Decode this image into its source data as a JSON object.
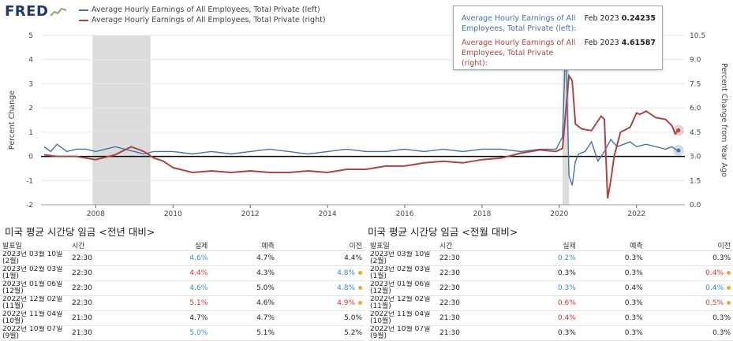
{
  "header": {
    "logo": "FRED",
    "legend": [
      {
        "label": "Average Hourly Earnings of All Employees, Total Private (left)",
        "color": "#4572a7"
      },
      {
        "label": "Average Hourly Earnings of All Employees, Total Private (right)",
        "color": "#aa4643"
      }
    ]
  },
  "tooltip": {
    "rows": [
      {
        "name": "Average Hourly Earnings of All Employees, Total Private (left):",
        "date": "Feb 2023",
        "value": "0.24235",
        "color": "#4572a7"
      },
      {
        "name": "Average Hourly Earnings of All Employees, Total Private (right):",
        "date": "Feb 2023",
        "value": "4.61587",
        "color": "#aa4643"
      }
    ]
  },
  "chart_data": {
    "type": "line",
    "y_left_label": "Percent Change",
    "y_right_label": "Percent Change from Year Ago",
    "y_left_ticks": [
      "5",
      "4",
      "3",
      "2",
      "1",
      "0",
      "-1",
      "-2"
    ],
    "y_right_ticks": [
      "10.5",
      "9.0",
      "7.5",
      "6.0",
      "4.5",
      "3.0",
      "1.5",
      "0.0"
    ],
    "x_ticks": [
      "2008",
      "2010",
      "2012",
      "2014",
      "2016",
      "2018",
      "2020",
      "2022"
    ],
    "ylim_left": [
      -2,
      5
    ],
    "ylim_right": [
      0,
      10.5
    ],
    "x_range": [
      2006.583,
      2023.25
    ],
    "recessions": [
      [
        2007.917,
        2009.417
      ],
      [
        2020.083,
        2020.25
      ]
    ],
    "series": [
      {
        "name": "Average Hourly Earnings of All Employees, Total Private (left)",
        "color": "#4572a7",
        "axis": "left",
        "x": [
          2006.667,
          2006.833,
          2007.0,
          2007.25,
          2007.5,
          2007.75,
          2008.0,
          2008.25,
          2008.5,
          2008.75,
          2009.0,
          2009.25,
          2009.5,
          2009.75,
          2010.0,
          2010.5,
          2011.0,
          2011.5,
          2012.0,
          2012.5,
          2013.0,
          2013.5,
          2014.0,
          2014.5,
          2015.0,
          2015.5,
          2016.0,
          2016.5,
          2017.0,
          2017.5,
          2018.0,
          2018.5,
          2019.0,
          2019.5,
          2019.917,
          2020.083,
          2020.167,
          2020.25,
          2020.333,
          2020.417,
          2020.5,
          2020.667,
          2020.833,
          2021.0,
          2021.167,
          2021.333,
          2021.5,
          2021.667,
          2021.833,
          2022.0,
          2022.25,
          2022.5,
          2022.75,
          2022.917,
          2023.0,
          2023.083
        ],
        "values": [
          0.4,
          0.2,
          0.5,
          0.2,
          0.3,
          0.3,
          0.2,
          0.3,
          0.4,
          0.3,
          0.2,
          0.1,
          0.2,
          0.2,
          0.2,
          0.1,
          0.2,
          0.1,
          0.2,
          0.3,
          0.2,
          0.1,
          0.2,
          0.3,
          0.2,
          0.2,
          0.3,
          0.2,
          0.3,
          0.2,
          0.3,
          0.3,
          0.2,
          0.3,
          0.3,
          0.8,
          4.8,
          -0.8,
          -1.2,
          -0.2,
          0.1,
          0.2,
          0.6,
          -0.2,
          0.2,
          0.7,
          0.4,
          0.5,
          0.6,
          0.4,
          0.5,
          0.4,
          0.3,
          0.4,
          0.3,
          0.24235
        ]
      },
      {
        "name": "Average Hourly Earnings of All Employees, Total Private (right)",
        "color": "#aa4643",
        "axis": "right",
        "x": [
          2006.667,
          2007.0,
          2007.5,
          2008.0,
          2008.5,
          2008.917,
          2009.25,
          2009.5,
          2009.75,
          2010.0,
          2010.5,
          2011.0,
          2011.5,
          2012.0,
          2012.5,
          2013.0,
          2013.5,
          2014.0,
          2014.5,
          2015.0,
          2015.5,
          2016.0,
          2016.5,
          2017.0,
          2017.5,
          2018.0,
          2018.5,
          2019.0,
          2019.5,
          2019.917,
          2020.083,
          2020.25,
          2020.333,
          2020.417,
          2020.583,
          2020.833,
          2021.083,
          2021.167,
          2021.25,
          2021.333,
          2021.417,
          2021.583,
          2021.833,
          2022.0,
          2022.083,
          2022.25,
          2022.5,
          2022.75,
          2022.917,
          2023.0,
          2023.083
        ],
        "values": [
          3.1,
          3.0,
          3.0,
          2.8,
          3.1,
          3.6,
          3.3,
          2.9,
          2.7,
          2.3,
          2.0,
          2.1,
          2.0,
          2.1,
          2.0,
          2.0,
          2.1,
          2.0,
          2.2,
          2.2,
          2.4,
          2.4,
          2.6,
          2.7,
          2.6,
          2.8,
          2.9,
          3.2,
          3.4,
          3.3,
          3.5,
          8.0,
          7.7,
          5.0,
          4.7,
          4.6,
          5.5,
          5.3,
          0.4,
          1.5,
          3.0,
          4.5,
          4.8,
          5.7,
          5.6,
          5.8,
          5.4,
          5.3,
          4.9,
          4.4,
          4.61587
        ]
      }
    ]
  },
  "tables": [
    {
      "title": "미국 평균 시간당 임금 <전년 대비>",
      "headers": [
        "발표일",
        "시간",
        "실제",
        "예측",
        "이전"
      ],
      "rows": [
        {
          "date": "2023년 03월 10일 (2월)",
          "time": "22:30",
          "actual": "4.6%",
          "forecast": "4.7%",
          "previous": "4.4%",
          "actual_color": "blue",
          "prev_color": "",
          "dot": false
        },
        {
          "date": "2023년 02월 03일 (1월)",
          "time": "22:30",
          "actual": "4.4%",
          "forecast": "4.3%",
          "previous": "4.8%",
          "actual_color": "red",
          "prev_color": "blue",
          "dot": true
        },
        {
          "date": "2023년 01월 06일 (12월)",
          "time": "22:30",
          "actual": "4.6%",
          "forecast": "5.0%",
          "previous": "4.8%",
          "actual_color": "blue",
          "prev_color": "blue",
          "dot": true
        },
        {
          "date": "2022년 12월 02일 (11월)",
          "time": "22:30",
          "actual": "5.1%",
          "forecast": "4.6%",
          "previous": "4.9%",
          "actual_color": "red",
          "prev_color": "red",
          "dot": true
        },
        {
          "date": "2022년 11월 04일 (10월)",
          "time": "21:30",
          "actual": "4.7%",
          "forecast": "4.7%",
          "previous": "5.0%",
          "actual_color": "",
          "prev_color": "",
          "dot": false
        },
        {
          "date": "2022년 10월 07일 (9월)",
          "time": "21:30",
          "actual": "5.0%",
          "forecast": "5.1%",
          "previous": "5.2%",
          "actual_color": "blue",
          "prev_color": "",
          "dot": false
        }
      ]
    },
    {
      "title": "미국 평균 시간당 임금 <전월 대비>",
      "headers": [
        "발표일",
        "시간",
        "실제",
        "예측",
        "이전"
      ],
      "rows": [
        {
          "date": "2023년 03월 10일 (2월)",
          "time": "22:30",
          "actual": "0.2%",
          "forecast": "0.3%",
          "previous": "0.3%",
          "actual_color": "blue",
          "prev_color": "",
          "dot": false
        },
        {
          "date": "2023년 02월 03일 (1월)",
          "time": "22:30",
          "actual": "0.3%",
          "forecast": "0.3%",
          "previous": "0.4%",
          "actual_color": "",
          "prev_color": "red",
          "dot": true
        },
        {
          "date": "2023년 01월 06일 (12월)",
          "time": "22:30",
          "actual": "0.3%",
          "forecast": "0.4%",
          "previous": "0.4%",
          "actual_color": "blue",
          "prev_color": "blue",
          "dot": true
        },
        {
          "date": "2022년 12월 02일 (11월)",
          "time": "22:30",
          "actual": "0.6%",
          "forecast": "0.3%",
          "previous": "0.5%",
          "actual_color": "red",
          "prev_color": "red",
          "dot": true
        },
        {
          "date": "2022년 11월 04일 (10월)",
          "time": "21:30",
          "actual": "0.4%",
          "forecast": "0.3%",
          "previous": "0.3%",
          "actual_color": "red",
          "prev_color": "",
          "dot": false
        },
        {
          "date": "2022년 10월 07일 (9월)",
          "time": "21:30",
          "actual": "0.3%",
          "forecast": "0.3%",
          "previous": "0.3%",
          "actual_color": "",
          "prev_color": "",
          "dot": false
        }
      ]
    }
  ]
}
